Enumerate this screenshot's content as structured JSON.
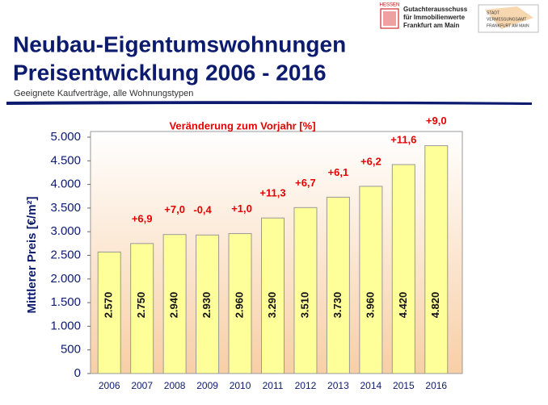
{
  "header": {
    "title_line1": "Neubau-Eigentumswohnungen",
    "title_line2": "Preisentwicklung 2006 - 2016",
    "subtitle": "Geeignete Kaufverträge, alle Wohnungstypen",
    "logo1_state": "HESSEN",
    "logo1_text": [
      "Gutachterausschuss",
      "für Immobilienwerte",
      "Frankfurt am Main"
    ],
    "logo2_text": [
      "STADT",
      "VERMESSUNGSAMT",
      "FRANKFURT AM MAIN"
    ]
  },
  "chart_data": {
    "type": "bar",
    "annotation": "Veränderung zum Vorjahr [%]",
    "ylabel": "Mittlerer Preis [€/m²]",
    "categories": [
      "2006",
      "2007",
      "2008",
      "2009",
      "2010",
      "2011",
      "2012",
      "2013",
      "2014",
      "2015",
      "2016"
    ],
    "values": [
      2570,
      2750,
      2940,
      2930,
      2960,
      3290,
      3510,
      3730,
      3960,
      4420,
      4820
    ],
    "value_labels": [
      "2.570",
      "2.750",
      "2.940",
      "2.930",
      "2.960",
      "3.290",
      "3.510",
      "3.730",
      "3.960",
      "4.420",
      "4.820"
    ],
    "color": "#ffff99",
    "changes": {
      "values": [
        null,
        6.9,
        7.0,
        -0.4,
        1.0,
        11.3,
        6.7,
        6.1,
        6.2,
        11.6,
        9.0
      ],
      "value_labels": [
        null,
        "+6,9",
        "+7,0",
        "-0,4",
        "+1,0",
        "+11,3",
        "+6,7",
        "+6,1",
        "+6,2",
        "+11,6",
        "+9,0"
      ],
      "color": "#e60000"
    },
    "ylim": [
      0,
      5000
    ],
    "yticks": [
      0,
      500,
      {
        "value": 1000,
        "label": "1.000"
      },
      {
        "value": 1500,
        "label": "1.500"
      },
      {
        "value": 2000,
        "label": "2.000"
      },
      {
        "value": 2500,
        "label": "2.500"
      },
      {
        "value": 3000,
        "label": "3.000"
      },
      {
        "value": 3500,
        "label": "3.500"
      },
      {
        "value": 4000,
        "label": "4.000"
      },
      {
        "value": 4500,
        "label": "4.500"
      },
      {
        "value": 5000,
        "label": "5.000"
      }
    ],
    "grid": false
  }
}
